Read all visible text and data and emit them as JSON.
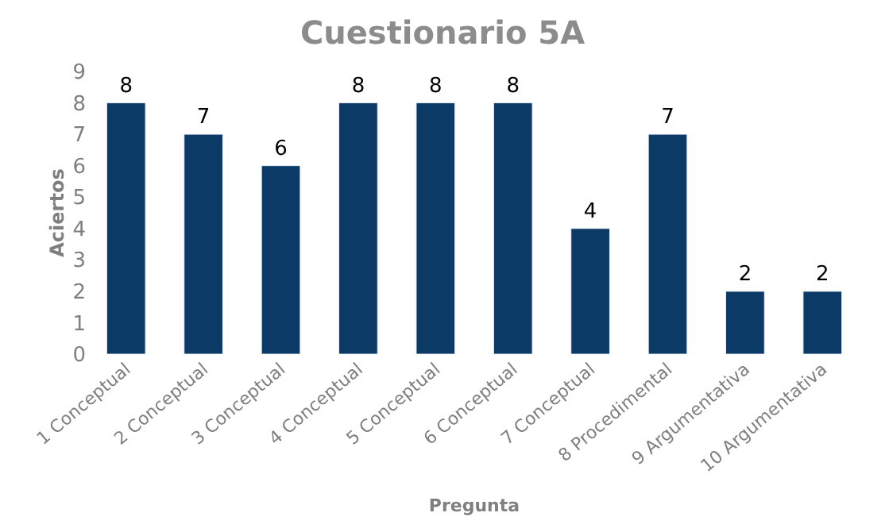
{
  "chart_data": {
    "type": "bar",
    "title": "Cuestionario 5A",
    "xlabel": "Pregunta",
    "ylabel": "Aciertos",
    "categories": [
      "1 Conceptual",
      "2 Conceptual",
      "3 Conceptual",
      "4 Conceptual",
      "5 Conceptual",
      "6 Conceptual",
      "7 Conceptual",
      "8 Procedimental",
      "9 Argumentativa",
      "10 Argumentativa"
    ],
    "values": [
      8,
      7,
      6,
      8,
      8,
      8,
      4,
      7,
      2,
      2
    ],
    "color": "#0c3a66",
    "ylim": [
      0,
      9
    ],
    "yticks": [
      0,
      1,
      2,
      3,
      4,
      5,
      6,
      7,
      8,
      9
    ],
    "data_labels": true
  }
}
